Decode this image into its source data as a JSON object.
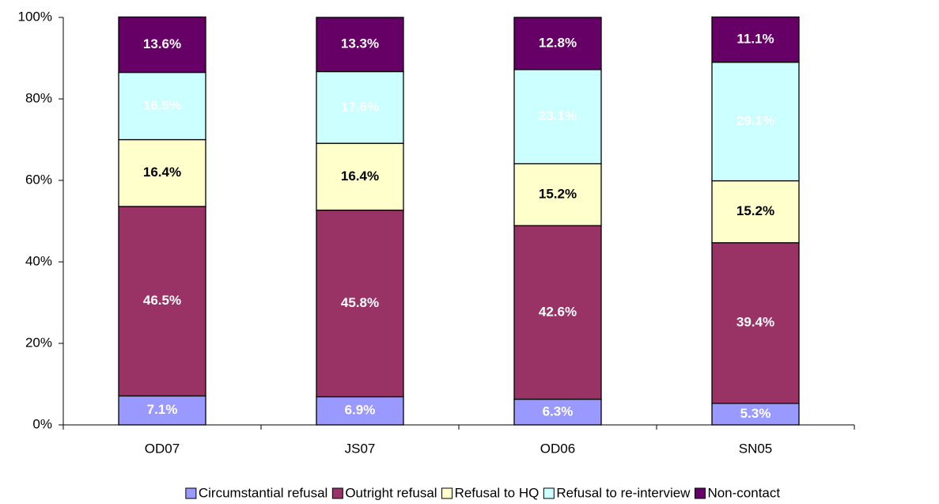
{
  "chart_data": {
    "type": "stacked_bar",
    "categories": [
      "OD07",
      "JS07",
      "OD06",
      "SN05"
    ],
    "series": [
      {
        "name": "Circumstantial refusal",
        "color": "#9999ff",
        "label_color": "#ffffff",
        "values": [
          7.1,
          6.9,
          6.3,
          5.3
        ],
        "value_labels": [
          "7.1%",
          "6.9%",
          "6.3%",
          "5.3%"
        ]
      },
      {
        "name": "Outright refusal",
        "color": "#993366",
        "label_color": "#ffffff",
        "values": [
          46.5,
          45.8,
          42.6,
          39.4
        ],
        "value_labels": [
          "46.5%",
          "45.8%",
          "42.6%",
          "39.4%"
        ]
      },
      {
        "name": "Refusal to HQ",
        "color": "#ffffcc",
        "label_color": "#000000",
        "values": [
          16.4,
          16.4,
          15.2,
          15.2
        ],
        "value_labels": [
          "16.4%",
          "16.4%",
          "15.2%",
          "15.2%"
        ]
      },
      {
        "name": "Refusal to re-interview",
        "color": "#ccffff",
        "label_color": "#ffffff",
        "values": [
          16.5,
          17.6,
          23.1,
          29.1
        ],
        "value_labels": [
          "16.5%",
          "17.6%",
          "23.1%",
          "29.1%"
        ]
      },
      {
        "name": "Non-contact",
        "color": "#660066",
        "label_color": "#ffffff",
        "values": [
          13.6,
          13.3,
          12.8,
          11.1
        ],
        "value_labels": [
          "13.6%",
          "13.3%",
          "12.8%",
          "11.1%"
        ]
      }
    ],
    "ylim": [
      0,
      100
    ],
    "yticks": [
      {
        "value": 0,
        "label": "0%"
      },
      {
        "value": 20,
        "label": "20%"
      },
      {
        "value": 40,
        "label": "40%"
      },
      {
        "value": 60,
        "label": "60%"
      },
      {
        "value": 80,
        "label": "80%"
      },
      {
        "value": 100,
        "label": "100%"
      }
    ],
    "grid": false,
    "legend": "bottom"
  }
}
